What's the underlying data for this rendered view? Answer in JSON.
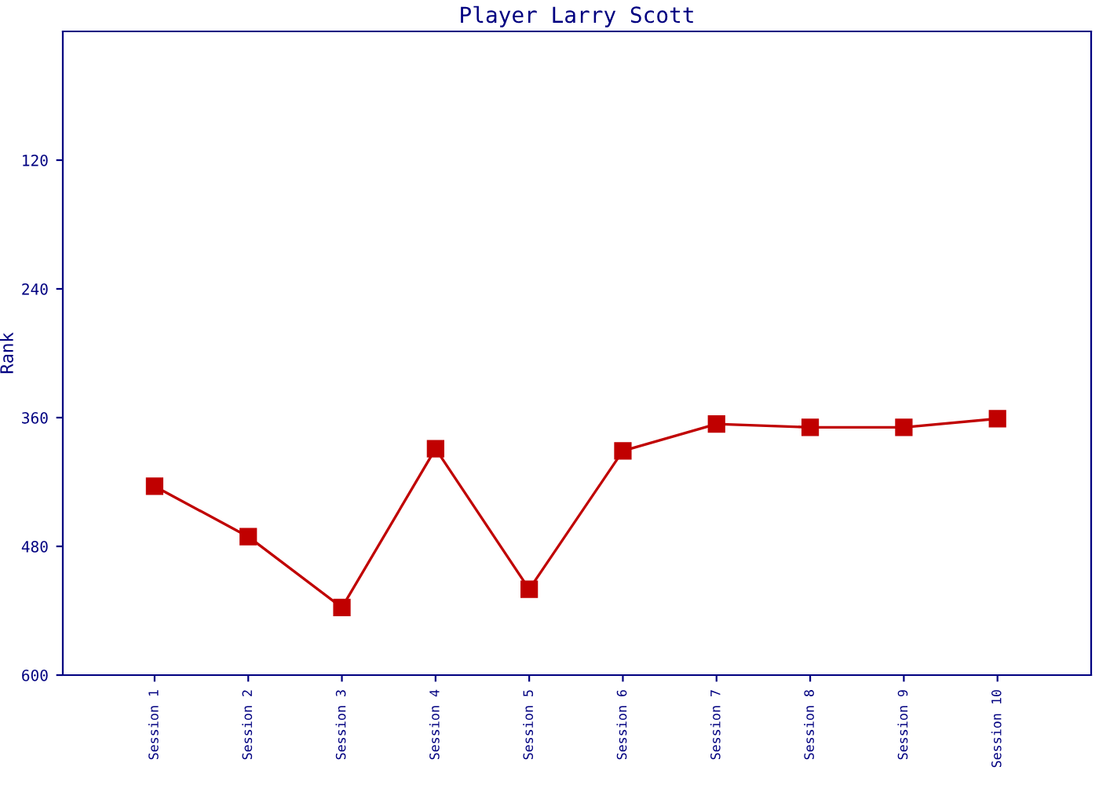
{
  "chart_data": {
    "type": "line",
    "title": "Player Larry Scott",
    "ylabel": "Rank",
    "categories": [
      "Session 1",
      "Session 2",
      "Session 3",
      "Session 4",
      "Session 5",
      "Session 6",
      "Session 7",
      "Session 8",
      "Session 9",
      "Session 10"
    ],
    "series": [
      {
        "color": "#c00000",
        "values": [
          424,
          471,
          537,
          389,
          520,
          391,
          366,
          369,
          369,
          361
        ]
      }
    ],
    "ylim": [
      600,
      0
    ],
    "yticks": [
      120,
      240,
      360,
      480,
      600
    ],
    "grid": false,
    "legend": false,
    "marker": "square",
    "line_style": "solid"
  }
}
